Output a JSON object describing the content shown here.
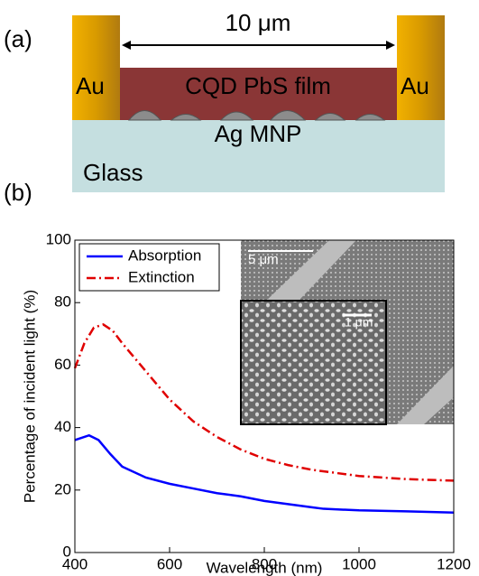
{
  "panel_labels": [
    "(a)",
    "(b)"
  ],
  "diagram": {
    "width_label": "10 μm",
    "electrode_left": "Au",
    "electrode_right": "Au",
    "film": "CQD PbS film",
    "particles": "Ag MNP",
    "substrate": "Glass"
  },
  "inset": {
    "scale_outer": "5 μm",
    "scale_inner": "1 μm"
  },
  "chart_data": {
    "type": "line",
    "x_label": "Wavelength (nm)",
    "y_label": "Percentage of incident light (%)",
    "xlim": [
      400,
      1200
    ],
    "xticks": [
      400,
      600,
      800,
      1000,
      1200
    ],
    "ylim": [
      0,
      100
    ],
    "yticks": [
      0,
      20,
      40,
      60,
      80,
      100
    ],
    "legend": "upper left",
    "series": [
      {
        "name": "Absorption",
        "color": "#0000ff",
        "style": "solid",
        "x": [
          400,
          430,
          450,
          475,
          500,
          550,
          600,
          650,
          700,
          750,
          800,
          850,
          900,
          925,
          1000,
          1100,
          1200
        ],
        "values": [
          36,
          37.5,
          36,
          31.5,
          27.5,
          24,
          22,
          20.5,
          19,
          18,
          16.5,
          15.5,
          14.5,
          14,
          13.5,
          13.2,
          12.8
        ]
      },
      {
        "name": "Extinction",
        "color": "#e00000",
        "style": "dashdot",
        "x": [
          400,
          420,
          440,
          460,
          480,
          500,
          550,
          600,
          650,
          700,
          750,
          800,
          850,
          900,
          1000,
          1100,
          1200
        ],
        "values": [
          59,
          67,
          72,
          73,
          71,
          67,
          58,
          49,
          42,
          37,
          33,
          30,
          28,
          26.5,
          24.5,
          23.5,
          23
        ]
      }
    ]
  }
}
